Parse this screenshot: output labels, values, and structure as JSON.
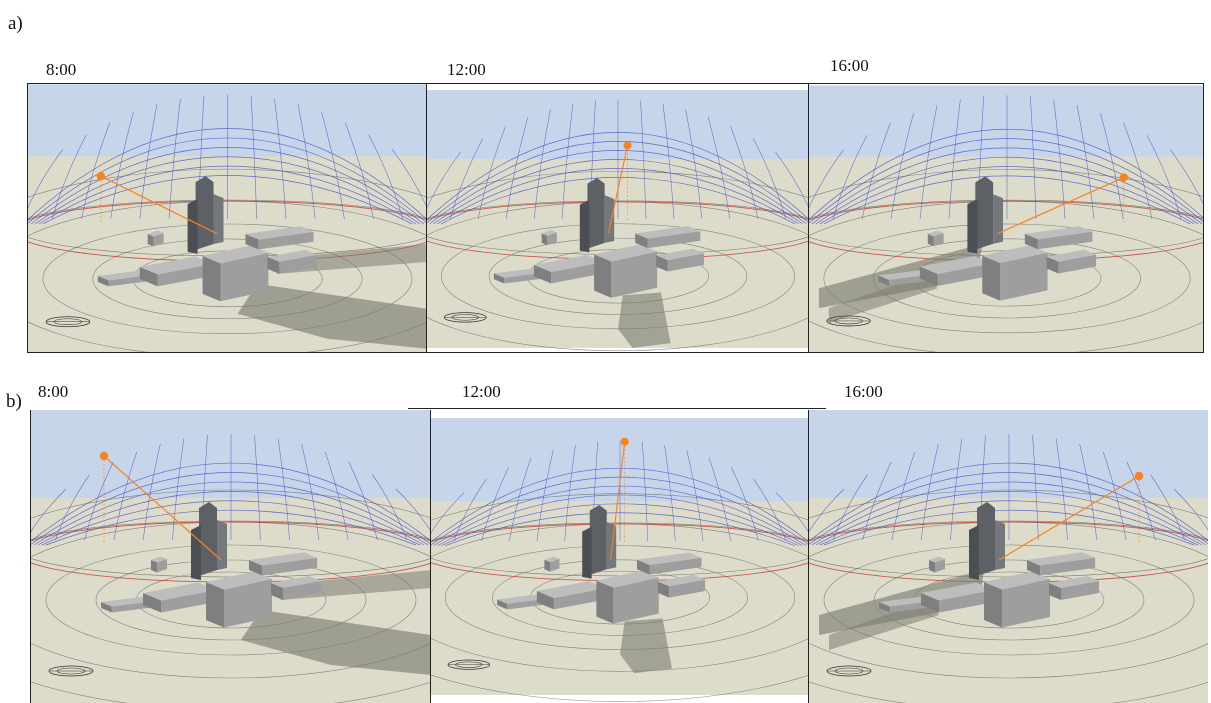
{
  "rows": [
    {
      "label": "a)",
      "times": [
        "8:00",
        "12:00",
        "16:00"
      ]
    },
    {
      "label": "b)",
      "times": [
        "8:00",
        "12:00",
        "16:00"
      ]
    }
  ],
  "colors": {
    "sky": "#c6d5ea",
    "ground": "#dddccb",
    "building": "#9e9e9e",
    "tower": "#5d6166",
    "shadow": "#7c7c72",
    "sunpath_grid": "#4a57c9",
    "sun": "#f7821e",
    "horizon_ring": "#c0392b"
  },
  "icons": [
    "sun-marker-icon",
    "compass-rose-icon"
  ]
}
